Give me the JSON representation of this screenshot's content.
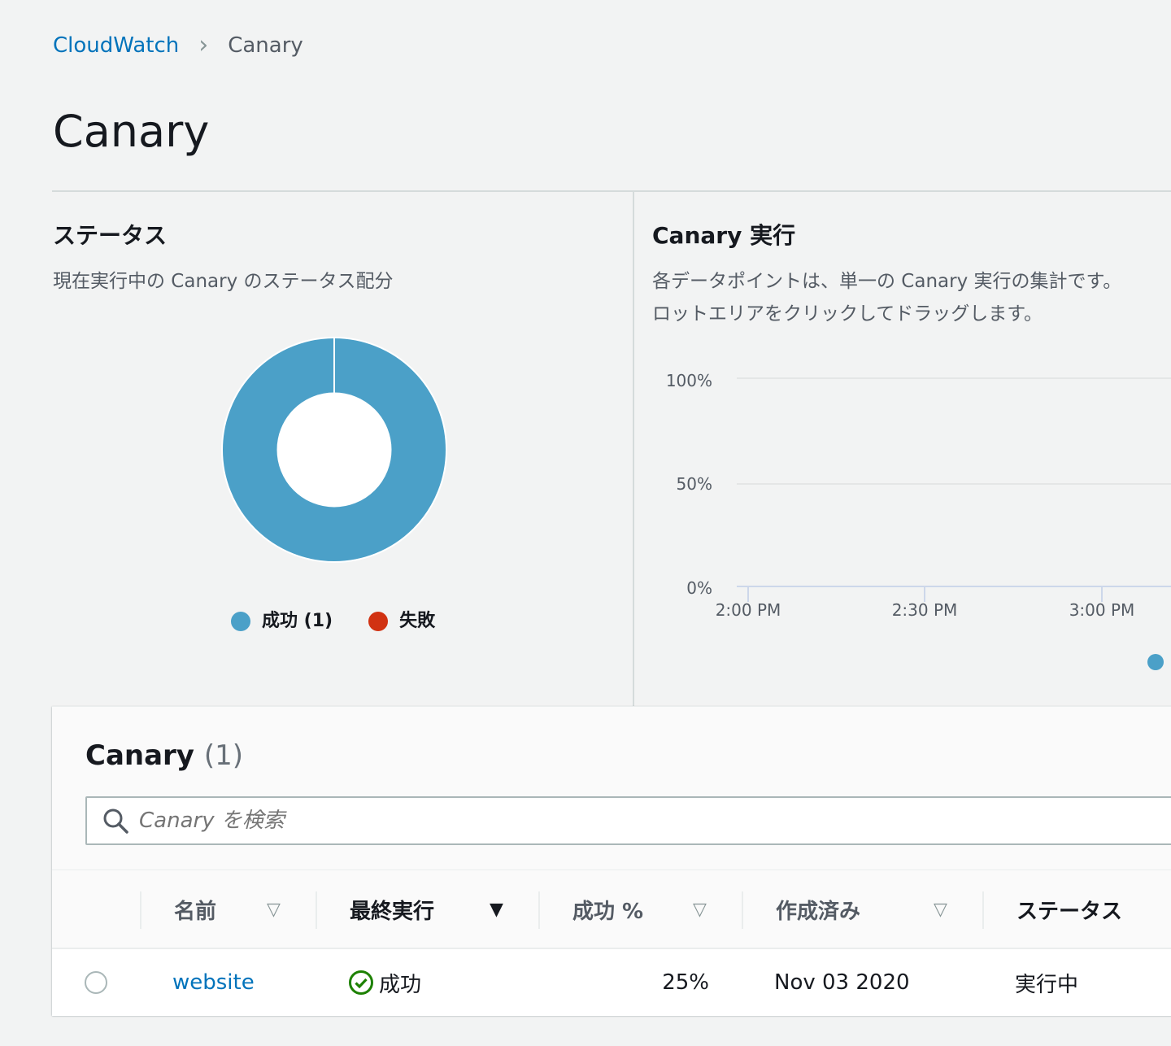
{
  "breadcrumb": {
    "root": "CloudWatch",
    "current": "Canary"
  },
  "page_title": "Canary",
  "status_panel": {
    "title": "ステータス",
    "description": "現在実行中の Canary のステータス配分",
    "legend": [
      {
        "label": "成功 (1)",
        "color": "#4ba0c8"
      },
      {
        "label": "失敗",
        "color": "#d13212"
      }
    ]
  },
  "runs_panel": {
    "title": "Canary 実行",
    "description_line1": "各データポイントは、単一の Canary 実行の集計です。",
    "description_line2": "ロットエリアをクリックしてドラッグします。",
    "legend_color": "#4ba0c8"
  },
  "chart_data": [
    {
      "type": "pie",
      "donut": true,
      "slices": [
        {
          "label": "成功",
          "value": 1,
          "color": "#4ba0c8"
        },
        {
          "label": "失敗",
          "value": 0,
          "color": "#d13212"
        }
      ]
    },
    {
      "type": "line",
      "y_ticks": [
        "100%",
        "50%",
        "0%"
      ],
      "ylim": [
        0,
        100
      ],
      "x_ticks": [
        "2:00 PM",
        "2:30 PM",
        "3:00 PM"
      ],
      "grid": true
    }
  ],
  "table": {
    "title": "Canary",
    "count": "(1)",
    "search_placeholder": "Canary を検索",
    "columns": [
      "名前",
      "最終実行",
      "成功 %",
      "作成済み",
      "ステータス"
    ],
    "rows": [
      {
        "name": "website",
        "last_run": "成功",
        "success_pct": "25%",
        "created": "Nov 03 2020",
        "status": "実行中"
      }
    ]
  }
}
